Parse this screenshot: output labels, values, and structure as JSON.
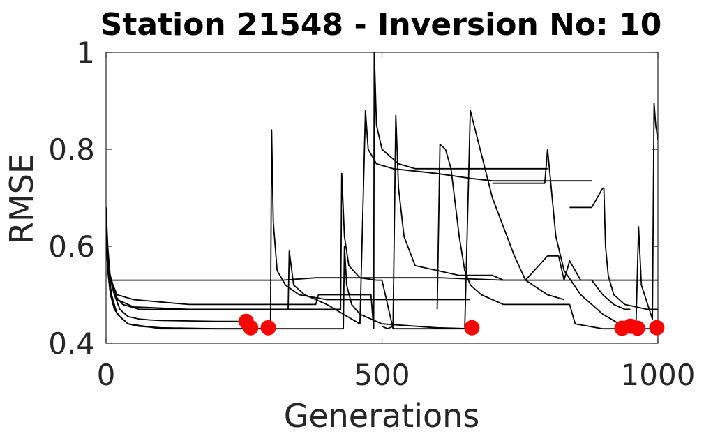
{
  "chart_data": {
    "type": "line",
    "title": "Station 21548 - Inversion No: 10",
    "xlabel": "Generations",
    "ylabel": "RMSE",
    "xlim": [
      0,
      1000
    ],
    "ylim": [
      0.4,
      1.0
    ],
    "xticks": [
      0,
      500,
      1000
    ],
    "xtick_labels": [
      "0",
      "500",
      "1000"
    ],
    "yticks": [
      0.4,
      0.6,
      0.8,
      1.0
    ],
    "ytick_labels": [
      "0.4",
      "0.6",
      "0.8",
      "1"
    ],
    "grid": false,
    "colors": {
      "line": "#000000",
      "marker": "#ff0000",
      "axis": "#262626"
    },
    "series": [
      {
        "x": [
          0,
          3,
          8,
          15,
          25,
          40,
          60,
          80,
          100,
          150,
          200,
          250,
          260
        ],
        "y": [
          0.68,
          0.6,
          0.53,
          0.5,
          0.47,
          0.455,
          0.45,
          0.448,
          0.447,
          0.446,
          0.445,
          0.445,
          0.445
        ]
      },
      {
        "x": [
          0,
          3,
          8,
          15,
          25,
          40,
          60,
          100,
          200,
          300,
          420,
          430,
          432,
          436,
          445,
          460,
          500,
          600,
          660
        ],
        "y": [
          0.62,
          0.55,
          0.5,
          0.47,
          0.455,
          0.44,
          0.435,
          0.432,
          0.43,
          0.43,
          0.43,
          0.43,
          0.6,
          0.52,
          0.48,
          0.46,
          0.44,
          0.432,
          0.43
        ]
      },
      {
        "x": [
          0,
          3,
          10,
          20,
          50,
          100,
          200,
          300,
          320,
          380,
          600,
          605,
          720,
          1000
        ],
        "y": [
          0.64,
          0.55,
          0.53,
          0.53,
          0.53,
          0.53,
          0.53,
          0.53,
          0.53,
          0.535,
          0.535,
          0.535,
          0.53,
          0.53
        ]
      },
      {
        "x": [
          0,
          3,
          10,
          20,
          40,
          100,
          200,
          298,
          300,
          303,
          310,
          325,
          350,
          400,
          500,
          600,
          660
        ],
        "y": [
          0.66,
          0.56,
          0.5,
          0.46,
          0.44,
          0.43,
          0.43,
          0.43,
          0.84,
          0.65,
          0.55,
          0.52,
          0.5,
          0.49,
          0.49,
          0.49,
          0.49
        ]
      },
      {
        "x": [
          0,
          5,
          15,
          30,
          60,
          150,
          330,
          332,
          340,
          360,
          400,
          460,
          470,
          475,
          490,
          520,
          600,
          660,
          700,
          750,
          800,
          850,
          880
        ],
        "y": [
          0.65,
          0.55,
          0.5,
          0.48,
          0.47,
          0.47,
          0.47,
          0.59,
          0.52,
          0.5,
          0.48,
          0.44,
          0.88,
          0.8,
          0.77,
          0.76,
          0.75,
          0.74,
          0.735,
          0.735,
          0.735,
          0.735,
          0.735
        ]
      },
      {
        "x": [
          0,
          5,
          20,
          50,
          150,
          300,
          425,
          427,
          432,
          440,
          460,
          490,
          500,
          520,
          600,
          620,
          650,
          660,
          700,
          740,
          760,
          800,
          830
        ],
        "y": [
          0.63,
          0.55,
          0.49,
          0.475,
          0.47,
          0.47,
          0.47,
          0.75,
          0.62,
          0.56,
          0.535,
          0.53,
          0.53,
          0.43,
          0.43,
          0.43,
          0.43,
          0.88,
          0.7,
          0.58,
          0.53,
          0.5,
          0.49
        ]
      },
      {
        "x": [
          0,
          5,
          20,
          50,
          150,
          300,
          380,
          385,
          480,
          485,
          486,
          490,
          500,
          530,
          560,
          620,
          700,
          760,
          800
        ],
        "y": [
          0.61,
          0.54,
          0.5,
          0.49,
          0.48,
          0.48,
          0.48,
          0.5,
          0.5,
          0.43,
          1.0,
          0.85,
          0.8,
          0.77,
          0.76,
          0.76,
          0.76,
          0.76,
          0.76
        ]
      },
      {
        "x": [
          500,
          510,
          520,
          525,
          530,
          540,
          560,
          600,
          640,
          655,
          700,
          720,
          740,
          760,
          800,
          820,
          830,
          840,
          860,
          880,
          900,
          920,
          940,
          950
        ],
        "y": [
          0.435,
          0.43,
          0.435,
          0.87,
          0.72,
          0.62,
          0.56,
          0.55,
          0.54,
          0.54,
          0.54,
          0.53,
          0.53,
          0.53,
          0.58,
          0.58,
          0.53,
          0.57,
          0.53,
          0.53,
          0.5,
          0.48,
          0.47,
          0.47
        ]
      },
      {
        "x": [
          600,
          605,
          615,
          625,
          640,
          650,
          660,
          680,
          700,
          720,
          740,
          760,
          780,
          800,
          820,
          840,
          850,
          900,
          1000
        ],
        "y": [
          0.47,
          0.81,
          0.8,
          0.76,
          0.62,
          0.55,
          0.52,
          0.5,
          0.49,
          0.48,
          0.48,
          0.48,
          0.48,
          0.48,
          0.48,
          0.48,
          0.44,
          0.43,
          0.43
        ]
      },
      {
        "x": [
          700,
          710,
          730,
          760,
          780,
          790,
          795,
          800,
          815,
          830,
          860,
          900,
          930,
          950,
          960,
          965,
          970,
          990,
          993,
          996,
          1000
        ],
        "y": [
          0.73,
          0.73,
          0.73,
          0.73,
          0.73,
          0.73,
          0.73,
          0.8,
          0.62,
          0.55,
          0.5,
          0.46,
          0.44,
          0.43,
          0.43,
          0.64,
          0.52,
          0.45,
          0.895,
          0.85,
          0.82
        ]
      },
      {
        "x": [
          840,
          860,
          880,
          900,
          902,
          905,
          910,
          920,
          940,
          960,
          980,
          1000
        ],
        "y": [
          0.68,
          0.68,
          0.68,
          0.72,
          0.72,
          0.6,
          0.54,
          0.5,
          0.48,
          0.475,
          0.47,
          0.47
        ]
      }
    ],
    "markers": {
      "x": [
        254,
        262,
        294,
        663,
        935,
        950,
        963,
        998
      ],
      "y": [
        0.445,
        0.432,
        0.432,
        0.432,
        0.431,
        0.435,
        0.431,
        0.432
      ]
    }
  }
}
